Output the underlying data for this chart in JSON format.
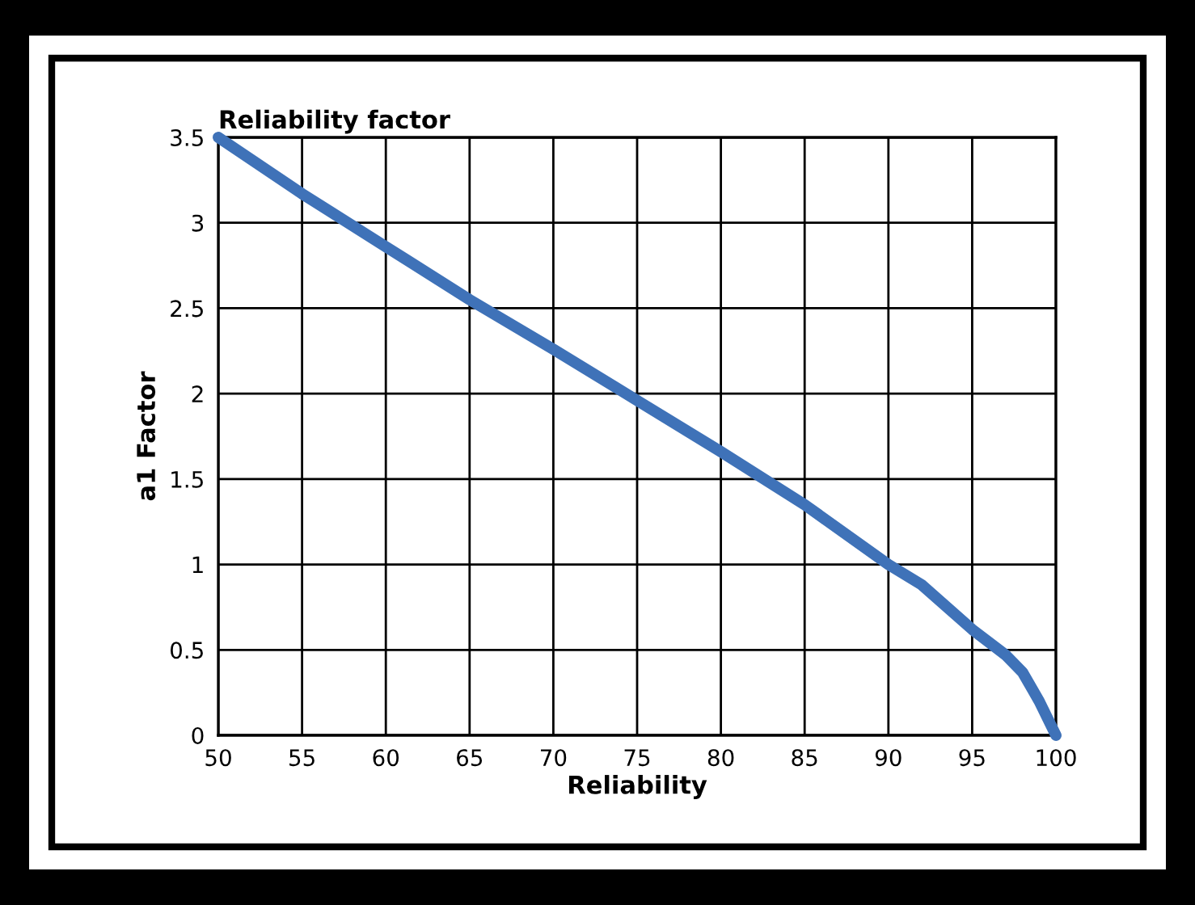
{
  "chart_data": {
    "type": "line",
    "title": "Reliability factor",
    "xlabel": "Reliability",
    "ylabel": "a1 Factor",
    "x": [
      50,
      55,
      60,
      65,
      70,
      75,
      80,
      85,
      90,
      92,
      95,
      97,
      98,
      99,
      100
    ],
    "series": [
      {
        "color": "#3f72b8",
        "values": [
          3.5,
          3.17,
          2.86,
          2.55,
          2.26,
          1.96,
          1.66,
          1.35,
          1.0,
          0.88,
          0.62,
          0.47,
          0.37,
          0.2,
          0
        ]
      }
    ],
    "xlim": [
      50,
      100
    ],
    "ylim": [
      0,
      3.5
    ],
    "xticks": [
      50,
      55,
      60,
      65,
      70,
      75,
      80,
      85,
      90,
      95,
      100
    ],
    "yticks": [
      0,
      0.5,
      1,
      1.5,
      2,
      2.5,
      3,
      3.5
    ],
    "grid": true,
    "legend": false,
    "marker": "none",
    "line_style": "solid"
  }
}
